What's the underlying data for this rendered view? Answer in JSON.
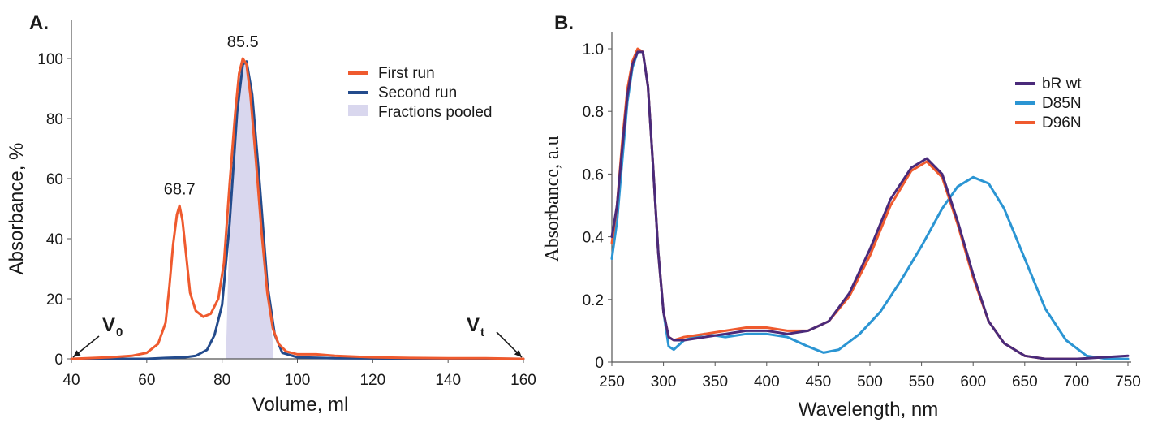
{
  "chart_data": [
    {
      "type": "line",
      "panel": "A.",
      "xlabel": "Volume, ml",
      "ylabel": "Absorbance, %",
      "xlim": [
        40,
        160
      ],
      "ylim": [
        0,
        110
      ],
      "xticks": [
        "40",
        "60",
        "80",
        "100",
        "120",
        "140",
        "160"
      ],
      "yticks": [
        "0",
        "20",
        "40",
        "60",
        "80",
        "100"
      ],
      "grid": false,
      "legend_position": "top-right",
      "series": [
        {
          "name": "First run",
          "color": "#ef5a2e",
          "x": [
            40,
            50,
            56,
            60,
            63,
            65,
            66,
            67,
            68,
            68.7,
            69.5,
            70.5,
            71.5,
            73,
            75,
            77,
            79,
            80.5,
            82,
            83.5,
            84.5,
            85.5,
            86.5,
            87.5,
            89,
            90.5,
            92,
            93.5,
            95,
            97,
            100,
            105,
            110,
            120,
            130,
            140,
            150,
            160
          ],
          "y": [
            0,
            0.5,
            1,
            2,
            5,
            12,
            24,
            38,
            48,
            51,
            46,
            34,
            22,
            16,
            14,
            15,
            20,
            32,
            58,
            82,
            95,
            100,
            98,
            88,
            66,
            42,
            22,
            10,
            5,
            2.5,
            1.5,
            1.5,
            1,
            0.5,
            0.3,
            0.2,
            0.2,
            0
          ]
        },
        {
          "name": "Second run",
          "color": "#234b8c",
          "x": [
            40,
            60,
            65,
            70,
            73,
            76,
            78,
            80,
            82,
            84,
            85.5,
            86.5,
            88,
            90,
            92,
            94,
            96,
            100,
            110,
            130,
            160
          ],
          "y": [
            0,
            0,
            0.3,
            0.5,
            1,
            3,
            8,
            18,
            45,
            82,
            98,
            99,
            88,
            58,
            25,
            8,
            2,
            0.5,
            0.2,
            0.1,
            0
          ]
        }
      ],
      "shaded_region": {
        "name": "Fractions pooled",
        "x_range": [
          81,
          93.5
        ],
        "color": "#d9d7ee"
      },
      "annotations": [
        {
          "text": "68.7",
          "x": 68.7,
          "y": 51
        },
        {
          "text": "85.5",
          "x": 85.5,
          "y": 100
        }
      ],
      "markers": [
        {
          "main": "V",
          "sub": "0",
          "x": 40
        },
        {
          "main": "V",
          "sub": "t",
          "x": 160
        }
      ]
    },
    {
      "type": "line",
      "panel": "B.",
      "xlabel": "Wavelength, nm",
      "ylabel": "Absorbance, a.u",
      "xlim": [
        250,
        750
      ],
      "ylim": [
        0,
        1.0
      ],
      "xticks": [
        "250",
        "300",
        "350",
        "400",
        "450",
        "500",
        "550",
        "600",
        "650",
        "700",
        "750"
      ],
      "yticks": [
        "0",
        "0.2",
        "0.4",
        "0.6",
        "0.8",
        "1.0"
      ],
      "grid": false,
      "legend_position": "top-right",
      "series": [
        {
          "name": "bR wt",
          "color": "#4a2a7a",
          "x": [
            250,
            255,
            260,
            265,
            270,
            275,
            280,
            285,
            290,
            295,
            300,
            305,
            310,
            320,
            340,
            360,
            380,
            400,
            420,
            440,
            460,
            480,
            500,
            520,
            540,
            555,
            570,
            585,
            600,
            615,
            630,
            650,
            670,
            700,
            750
          ],
          "y": [
            0.4,
            0.5,
            0.68,
            0.85,
            0.95,
            0.99,
            0.99,
            0.88,
            0.62,
            0.35,
            0.16,
            0.08,
            0.07,
            0.07,
            0.08,
            0.09,
            0.1,
            0.1,
            0.09,
            0.1,
            0.13,
            0.22,
            0.36,
            0.52,
            0.62,
            0.65,
            0.6,
            0.45,
            0.28,
            0.13,
            0.06,
            0.02,
            0.01,
            0.01,
            0.02
          ]
        },
        {
          "name": "D85N",
          "color": "#2b95d3",
          "x": [
            250,
            255,
            260,
            265,
            270,
            275,
            280,
            285,
            290,
            295,
            300,
            305,
            310,
            320,
            340,
            360,
            380,
            400,
            420,
            440,
            455,
            470,
            490,
            510,
            530,
            550,
            570,
            585,
            600,
            615,
            630,
            650,
            670,
            690,
            710,
            730,
            750
          ],
          "y": [
            0.33,
            0.45,
            0.64,
            0.83,
            0.94,
            0.99,
            0.99,
            0.88,
            0.62,
            0.35,
            0.16,
            0.05,
            0.04,
            0.07,
            0.09,
            0.08,
            0.09,
            0.09,
            0.08,
            0.05,
            0.03,
            0.04,
            0.09,
            0.16,
            0.26,
            0.37,
            0.49,
            0.56,
            0.59,
            0.57,
            0.49,
            0.33,
            0.17,
            0.07,
            0.02,
            0.01,
            0.01
          ]
        },
        {
          "name": "D96N",
          "color": "#ef5a2e",
          "x": [
            250,
            255,
            260,
            265,
            270,
            275,
            280,
            285,
            290,
            295,
            300,
            305,
            310,
            320,
            340,
            360,
            380,
            400,
            420,
            440,
            460,
            480,
            500,
            520,
            540,
            555,
            570,
            585,
            600,
            615,
            630,
            650,
            670,
            700
          ],
          "y": [
            0.38,
            0.5,
            0.7,
            0.87,
            0.96,
            1.0,
            0.99,
            0.88,
            0.62,
            0.35,
            0.16,
            0.08,
            0.07,
            0.08,
            0.09,
            0.1,
            0.11,
            0.11,
            0.1,
            0.1,
            0.13,
            0.21,
            0.34,
            0.5,
            0.61,
            0.64,
            0.59,
            0.44,
            0.27,
            0.13,
            0.06,
            0.02,
            0.01,
            0.01
          ]
        }
      ]
    }
  ]
}
